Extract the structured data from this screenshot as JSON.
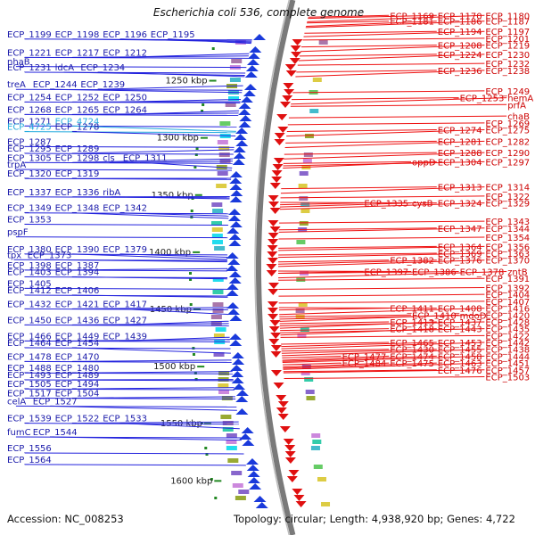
{
  "title": "Escherichia coli 536, complete genome",
  "footer": {
    "accession": "Accession: NC_008253",
    "summary": "Topology: circular; Length: 4,938,920 bp; Genes: 4,722"
  },
  "colors": {
    "left_label": "#1a1aaa",
    "left_line": "#2222dd",
    "right_label": "#cc0000",
    "right_line": "#ee1111",
    "highlight": "#22aadd",
    "tick": "#228822",
    "backbone": "#7a7a7a"
  },
  "kbp_ticks": [
    {
      "kbp": 1250,
      "label": "1250 kbp"
    },
    {
      "kbp": 1300,
      "label": "1300 kbp"
    },
    {
      "kbp": 1350,
      "label": "1350 kbp"
    },
    {
      "kbp": 1400,
      "label": "1400 kbp"
    },
    {
      "kbp": 1450,
      "label": "1450 kbp"
    },
    {
      "kbp": 1500,
      "label": "1500 kbp"
    },
    {
      "kbp": 1550,
      "label": "1550 kbp"
    },
    {
      "kbp": 1600,
      "label": "1600 kbp"
    }
  ],
  "left_labels": [
    {
      "text": "ECP_1199",
      "kbp": 1212
    },
    {
      "text": "ECP_1198",
      "kbp": 1213
    },
    {
      "text": "ECP_1196",
      "kbp": 1214
    },
    {
      "text": "ECP_1195",
      "kbp": 1215
    },
    {
      "text": "ECP_1221",
      "kbp": 1228
    },
    {
      "text": "ECP_1217",
      "kbp": 1226
    },
    {
      "text": "ECP_1212",
      "kbp": 1224
    },
    {
      "text": "nhaB",
      "kbp": 1236
    },
    {
      "text": "ECP_1231",
      "kbp": 1241
    },
    {
      "text": "ldcA",
      "kbp": 1243
    },
    {
      "text": "ECP_1234",
      "kbp": 1244
    },
    {
      "text": "treA",
      "kbp": 1256
    },
    {
      "text": "ECP_1244",
      "kbp": 1258
    },
    {
      "text": "ECP_1239",
      "kbp": 1252
    },
    {
      "text": "ECP_1254",
      "kbp": 1267
    },
    {
      "text": "ECP_1252",
      "kbp": 1266
    },
    {
      "text": "ECP_1250",
      "kbp": 1264
    },
    {
      "text": "ECP_1268",
      "kbp": 1278
    },
    {
      "text": "ECP_1265",
      "kbp": 1276
    },
    {
      "text": "ECP_1264",
      "kbp": 1274
    },
    {
      "text": "ECP_1271",
      "kbp": 1288,
      "highlight": false
    },
    {
      "text": "ECP_4724",
      "kbp": 1292,
      "highlight": true
    },
    {
      "text": "ECP_4725",
      "kbp": 1293,
      "highlight": true
    },
    {
      "text": "ECP_1278",
      "kbp": 1296
    },
    {
      "text": "ECP_1295",
      "kbp": 1312
    },
    {
      "text": "ECP_1289",
      "kbp": 1308
    },
    {
      "text": "ECP_1287",
      "kbp": 1306
    },
    {
      "text": "ECP_1305",
      "kbp": 1320
    },
    {
      "text": "ECP_1298",
      "kbp": 1316
    },
    {
      "text": "cls",
      "kbp": 1318
    },
    {
      "text": "ECP_1311",
      "kbp": 1324
    },
    {
      "text": "trpA",
      "kbp": 1326
    },
    {
      "text": "ECP_1320",
      "kbp": 1334
    },
    {
      "text": "ECP_1319",
      "kbp": 1333
    },
    {
      "text": "ECP_1337",
      "kbp": 1350
    },
    {
      "text": "ECP_1336",
      "kbp": 1349
    },
    {
      "text": "ribA",
      "kbp": 1351
    },
    {
      "text": "ECP_1349",
      "kbp": 1364
    },
    {
      "text": "ECP_1348",
      "kbp": 1368
    },
    {
      "text": "ECP_1342",
      "kbp": 1366
    },
    {
      "text": "ECP_1353",
      "kbp": 1374
    },
    {
      "text": "pspF",
      "kbp": 1385
    },
    {
      "text": "ECP_1380",
      "kbp": 1400
    },
    {
      "text": "ECP_1390",
      "kbp": 1404
    },
    {
      "text": "ECP_1379",
      "kbp": 1402
    },
    {
      "text": "tpx",
      "kbp": 1405
    },
    {
      "text": "ECP_1373",
      "kbp": 1406
    },
    {
      "text": "ECP_1398",
      "kbp": 1414
    },
    {
      "text": "ECP_1387",
      "kbp": 1412
    },
    {
      "text": "ECP_1403",
      "kbp": 1420
    },
    {
      "text": "ECP_1394",
      "kbp": 1421
    },
    {
      "text": "ECP_1405",
      "kbp": 1430
    },
    {
      "text": "ECP_1412",
      "kbp": 1436
    },
    {
      "text": "ECP_1406",
      "kbp": 1437
    },
    {
      "text": "ECP_1432",
      "kbp": 1448
    },
    {
      "text": "ECP_1421",
      "kbp": 1446
    },
    {
      "text": "ECP_1417",
      "kbp": 1452
    },
    {
      "text": "ECP_1450",
      "kbp": 1462
    },
    {
      "text": "ECP_1436",
      "kbp": 1460
    },
    {
      "text": "ECP_1427",
      "kbp": 1458
    },
    {
      "text": "ECP_1466",
      "kbp": 1476
    },
    {
      "text": "ECP_1449",
      "kbp": 1474
    },
    {
      "text": "ECP_1439",
      "kbp": 1472
    },
    {
      "text": "ECP_1464",
      "kbp": 1482
    },
    {
      "text": "ECP_1454",
      "kbp": 1486
    },
    {
      "text": "ECP_1478",
      "kbp": 1494
    },
    {
      "text": "ECP_1470",
      "kbp": 1492
    },
    {
      "text": "ECP_1488",
      "kbp": 1504
    },
    {
      "text": "ECP_1480",
      "kbp": 1502
    },
    {
      "text": "ECP_1493",
      "kbp": 1510
    },
    {
      "text": "ECP_1489",
      "kbp": 1509
    },
    {
      "text": "ECP_1505",
      "kbp": 1518
    },
    {
      "text": "ECP_1494",
      "kbp": 1516
    },
    {
      "text": "ECP_1517",
      "kbp": 1526
    },
    {
      "text": "ECP_1504",
      "kbp": 1524
    },
    {
      "text": "celA",
      "kbp": 1533
    },
    {
      "text": "ECP_1527",
      "kbp": 1536
    },
    {
      "text": "ECP_1539",
      "kbp": 1548
    },
    {
      "text": "ECP_1522",
      "kbp": 1546
    },
    {
      "text": "ECP_1533",
      "kbp": 1552
    },
    {
      "text": "fumC",
      "kbp": 1560
    },
    {
      "text": "ECP_1544",
      "kbp": 1562
    },
    {
      "text": "ECP_1556",
      "kbp": 1574
    },
    {
      "text": "ECP_1564",
      "kbp": 1584
    }
  ],
  "right_labels": [
    {
      "text": "ECP_1169",
      "kbp": 1196
    },
    {
      "text": "ECP_1170",
      "kbp": 1197
    },
    {
      "text": "ECP_1180",
      "kbp": 1200
    },
    {
      "text": "ECP_1181",
      "kbp": 1201
    },
    {
      "text": "ECP_1186",
      "kbp": 1204
    },
    {
      "text": "ECP_1187",
      "kbp": 1205
    },
    {
      "text": "ECP_1194",
      "kbp": 1210
    },
    {
      "text": "ECP_1197",
      "kbp": 1213
    },
    {
      "text": "ECP_1201",
      "kbp": 1216
    },
    {
      "text": "ECP_1208",
      "kbp": 1222
    },
    {
      "text": "ECP_1219",
      "kbp": 1226
    },
    {
      "text": "ECP_1224",
      "kbp": 1230
    },
    {
      "text": "ECP_1230",
      "kbp": 1234
    },
    {
      "text": "ECP_1232",
      "kbp": 1238
    },
    {
      "text": "ECP_1236",
      "kbp": 1244
    },
    {
      "text": "ECP_1238",
      "kbp": 1248
    },
    {
      "text": "ECP_1249",
      "kbp": 1262
    },
    {
      "text": "ECP_1253",
      "kbp": 1268
    },
    {
      "text": "hemA",
      "kbp": 1272
    },
    {
      "text": "prfA",
      "kbp": 1274
    },
    {
      "text": "chaB",
      "kbp": 1284
    },
    {
      "text": "ECP_1269",
      "kbp": 1290
    },
    {
      "text": "ECP_1274",
      "kbp": 1296
    },
    {
      "text": "ECP_1275",
      "kbp": 1300
    },
    {
      "text": "ECP_1281",
      "kbp": 1306
    },
    {
      "text": "ECP_1282",
      "kbp": 1310
    },
    {
      "text": "ECP_1288",
      "kbp": 1316
    },
    {
      "text": "ECP_1290",
      "kbp": 1320
    },
    {
      "text": "oppD",
      "kbp": 1324
    },
    {
      "text": "ECP_1304",
      "kbp": 1328
    },
    {
      "text": "ECP_1297",
      "kbp": 1326
    },
    {
      "text": "ECP_1313",
      "kbp": 1346
    },
    {
      "text": "ECP_1314",
      "kbp": 1350
    },
    {
      "text": "ECP_1322",
      "kbp": 1354
    },
    {
      "text": "ECP_1335",
      "kbp": 1360
    },
    {
      "text": "cysB",
      "kbp": 1362
    },
    {
      "text": "ECP_1324",
      "kbp": 1358
    },
    {
      "text": "ECP_1329",
      "kbp": 1364
    },
    {
      "text": "ECP_1343",
      "kbp": 1376
    },
    {
      "text": "ECP_1347",
      "kbp": 1382
    },
    {
      "text": "ECP_1344",
      "kbp": 1384
    },
    {
      "text": "ECP_1354",
      "kbp": 1390
    },
    {
      "text": "ECP_1364",
      "kbp": 1398
    },
    {
      "text": "ECP_1356",
      "kbp": 1400
    },
    {
      "text": "ECP_1369",
      "kbp": 1404
    },
    {
      "text": "ECP_1363",
      "kbp": 1406
    },
    {
      "text": "ECP_1382",
      "kbp": 1410
    },
    {
      "text": "ECP_1376",
      "kbp": 1412
    },
    {
      "text": "ECP_1370",
      "kbp": 1414
    },
    {
      "text": "ECP_1397",
      "kbp": 1420
    },
    {
      "text": "ECP_1386",
      "kbp": 1418
    },
    {
      "text": "ECP_1378",
      "kbp": 1420
    },
    {
      "text": "zntB",
      "kbp": 1424
    },
    {
      "text": "ECP_1391",
      "kbp": 1426
    },
    {
      "text": "ECP_1392",
      "kbp": 1434
    },
    {
      "text": "ECP_1404",
      "kbp": 1440
    },
    {
      "text": "ECP_1407",
      "kbp": 1446
    },
    {
      "text": "ECP_1411",
      "kbp": 1452
    },
    {
      "text": "ECP_1408",
      "kbp": 1450
    },
    {
      "text": "ECP_1416",
      "kbp": 1456
    },
    {
      "text": "ECP_1410",
      "kbp": 1458
    },
    {
      "text": "mdoD",
      "kbp": 1462
    },
    {
      "text": "ECP_1420",
      "kbp": 1460
    },
    {
      "text": "ECP_1413",
      "kbp": 1464
    },
    {
      "text": "ECP_1437",
      "kbp": 1468
    },
    {
      "text": "ECP_1428",
      "kbp": 1466
    },
    {
      "text": "ECP_1418",
      "kbp": 1470
    },
    {
      "text": "ECP_1443",
      "kbp": 1474
    },
    {
      "text": "ECP_1435",
      "kbp": 1472
    },
    {
      "text": "ECP_1422",
      "kbp": 1476
    },
    {
      "text": "ECP_1465",
      "kbp": 1482
    },
    {
      "text": "ECP_1453",
      "kbp": 1484
    },
    {
      "text": "ECP_1442",
      "kbp": 1486
    },
    {
      "text": "ECP_1430",
      "kbp": 1488
    },
    {
      "text": "ECP_1455",
      "kbp": 1490
    },
    {
      "text": "ECP_1438",
      "kbp": 1492
    },
    {
      "text": "ECP_1477",
      "kbp": 1494
    },
    {
      "text": "ECP_1474",
      "kbp": 1496
    },
    {
      "text": "ECP_1458",
      "kbp": 1497
    },
    {
      "text": "ECP_1444",
      "kbp": 1498
    },
    {
      "text": "ECP_1484",
      "kbp": 1500
    },
    {
      "text": "ECP_1475",
      "kbp": 1502
    },
    {
      "text": "ECP_1463",
      "kbp": 1503
    },
    {
      "text": "ECP_1451",
      "kbp": 1504
    },
    {
      "text": "ECP_1476",
      "kbp": 1506
    },
    {
      "text": "ECP_1457",
      "kbp": 1507
    },
    {
      "text": "ECP_1503",
      "kbp": 1512
    }
  ]
}
